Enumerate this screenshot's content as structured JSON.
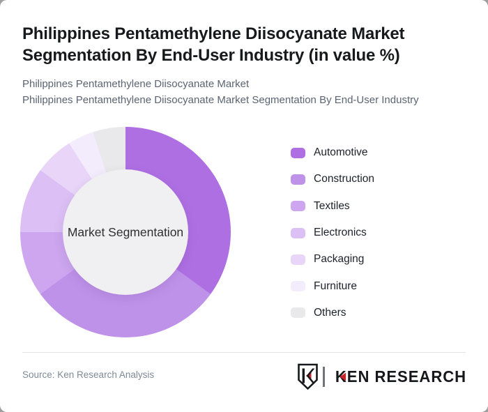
{
  "card": {
    "title": "Philippines Pentamethylene Diisocyanate Market Segmentation By End-User Industry (in value %)",
    "subtitle1": "Philippines Pentamethylene Diisocyanate Market",
    "subtitle2": "Philippines Pentamethylene Diisocyanate Market Segmentation By End-User Industry"
  },
  "chart_data": {
    "type": "pie",
    "subtype": "donut",
    "title": "Philippines Pentamethylene Diisocyanate Market Segmentation By End-User Industry (in value %)",
    "center_label": "Market Segmentation",
    "categories": [
      "Automotive",
      "Construction",
      "Textiles",
      "Electronics",
      "Packaging",
      "Furniture",
      "Others"
    ],
    "values": [
      35,
      30,
      10,
      10,
      6,
      4,
      5
    ],
    "unit": "value %",
    "colors": [
      "#ae6fe2",
      "#bf92ea",
      "#cda6ef",
      "#dcbff4",
      "#e8d5f8",
      "#f3ecfc",
      "#e9e8ea"
    ],
    "hole_color": "#f0eff1",
    "start_angle_deg": 0,
    "direction": "clockwise",
    "legend_position": "right"
  },
  "footer": {
    "source": "Source: Ken Research Analysis",
    "logo": {
      "monogram": "K",
      "brand_k": "K",
      "brand_rest": "EN RESEARCH",
      "accent_color": "#c9252c",
      "ink_color": "#16181b"
    }
  }
}
